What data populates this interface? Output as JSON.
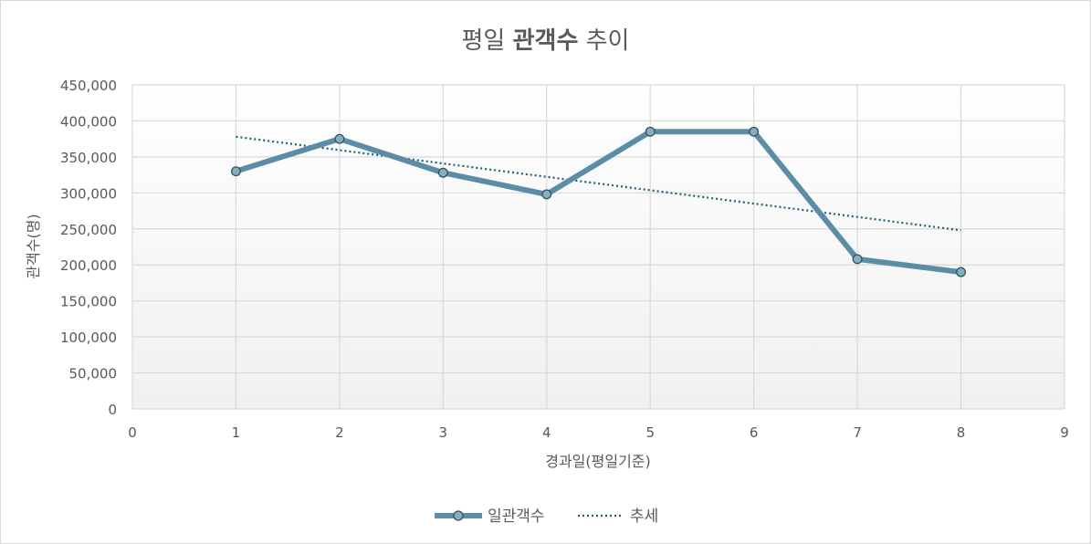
{
  "chart_data": {
    "type": "line",
    "title": {
      "prefix": "평일 ",
      "bold": "관객수",
      "suffix": " 추이"
    },
    "xlabel": "경과일(평일기준)",
    "ylabel": "관객수(명)",
    "xlim": [
      0,
      9
    ],
    "ylim": [
      0,
      450000
    ],
    "xticks": [
      "0",
      "1",
      "2",
      "3",
      "4",
      "5",
      "6",
      "7",
      "8",
      "9"
    ],
    "yticks": [
      "0",
      "50,000",
      "100,000",
      "150,000",
      "200,000",
      "250,000",
      "300,000",
      "350,000",
      "400,000",
      "450,000"
    ],
    "grid": true,
    "legend_position": "bottom",
    "series": [
      {
        "name": "일관객수",
        "x": [
          1,
          2,
          3,
          4,
          5,
          6,
          7,
          8
        ],
        "values": [
          330000,
          375000,
          328000,
          298000,
          385000,
          385000,
          208000,
          190000
        ],
        "color": "#5b8ea6",
        "marker_fill": "#86aec0",
        "marker_stroke": "#2f5466"
      },
      {
        "name": "추세",
        "style": "dotted",
        "x": [
          1,
          8
        ],
        "values": [
          378000,
          248000
        ],
        "color": "#1f5f73"
      }
    ]
  }
}
